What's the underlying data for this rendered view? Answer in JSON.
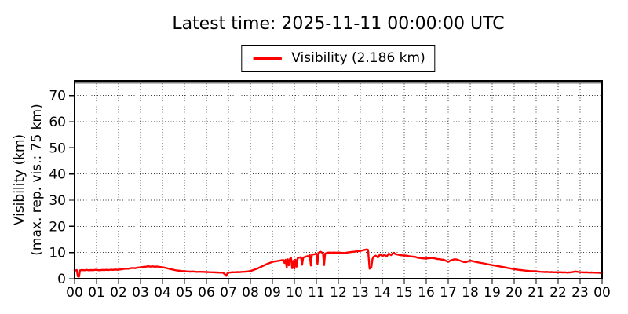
{
  "header": {
    "title": "Latest time: 2025-11-11 00:00:00 UTC"
  },
  "legend": {
    "label": "Visibility (2.186 km)",
    "line_color": "#ff0000"
  },
  "chart_data": {
    "type": "line",
    "title": "Latest time: 2025-11-11 00:00:00 UTC",
    "xlabel": "",
    "ylabel": "Visibility (km)",
    "ylabel_line2": "(max. rep. vis.: 75 km)",
    "xlim": [
      0,
      24
    ],
    "ylim": [
      0,
      75.6
    ],
    "xtick_values": [
      0,
      1,
      2,
      3,
      4,
      5,
      6,
      7,
      8,
      9,
      10,
      11,
      12,
      13,
      14,
      15,
      16,
      17,
      18,
      19,
      20,
      21,
      22,
      23,
      24
    ],
    "xtick_labels": [
      "00",
      "01",
      "02",
      "03",
      "04",
      "05",
      "06",
      "07",
      "08",
      "09",
      "10",
      "11",
      "12",
      "13",
      "14",
      "15",
      "16",
      "17",
      "18",
      "19",
      "20",
      "21",
      "22",
      "23",
      "00"
    ],
    "ytick_values": [
      0,
      10,
      20,
      30,
      40,
      50,
      60,
      70
    ],
    "ytick_labels": [
      "0",
      "10",
      "20",
      "30",
      "40",
      "50",
      "60",
      "70"
    ],
    "grid": true,
    "grid_style": "dotted",
    "legend_position": "top-center-outside",
    "max_reported_visibility_km": 75,
    "max_line_color": "#808080",
    "line_color": "#ff0000",
    "latest_value_km": 2.186,
    "latest_time_utc": "2025-11-11 00:00:00",
    "series": [
      {
        "name": "Visibility",
        "units": "km",
        "points": [
          [
            0,
            3.3
          ],
          [
            0.05,
            3.15
          ],
          [
            0.1,
            3.3
          ],
          [
            0.15,
            0.9
          ],
          [
            0.2,
            0.75
          ],
          [
            0.25,
            3.2
          ],
          [
            0.35,
            3.3
          ],
          [
            0.45,
            3.2
          ],
          [
            0.55,
            3.35
          ],
          [
            0.65,
            3.2
          ],
          [
            0.75,
            3.3
          ],
          [
            0.85,
            3.25
          ],
          [
            0.95,
            3.4
          ],
          [
            1.05,
            3.3
          ],
          [
            1.15,
            3.2
          ],
          [
            1.25,
            3.35
          ],
          [
            1.35,
            3.3
          ],
          [
            1.45,
            3.4
          ],
          [
            1.55,
            3.3
          ],
          [
            1.65,
            3.45
          ],
          [
            1.75,
            3.35
          ],
          [
            1.85,
            3.5
          ],
          [
            1.95,
            3.4
          ],
          [
            2.05,
            3.5
          ],
          [
            2.15,
            3.6
          ],
          [
            2.25,
            3.75
          ],
          [
            2.35,
            3.85
          ],
          [
            2.45,
            3.8
          ],
          [
            2.55,
            4.0
          ],
          [
            2.65,
            4.1
          ],
          [
            2.75,
            4.0
          ],
          [
            2.85,
            4.2
          ],
          [
            2.95,
            4.3
          ],
          [
            3.05,
            4.4
          ],
          [
            3.15,
            4.5
          ],
          [
            3.25,
            4.6
          ],
          [
            3.35,
            4.75
          ],
          [
            3.45,
            4.6
          ],
          [
            3.55,
            4.7
          ],
          [
            3.65,
            4.55
          ],
          [
            3.75,
            4.65
          ],
          [
            3.85,
            4.5
          ],
          [
            3.95,
            4.4
          ],
          [
            4.05,
            4.3
          ],
          [
            4.15,
            4.1
          ],
          [
            4.25,
            3.9
          ],
          [
            4.35,
            3.7
          ],
          [
            4.45,
            3.5
          ],
          [
            4.55,
            3.3
          ],
          [
            4.65,
            3.15
          ],
          [
            4.75,
            3.05
          ],
          [
            4.85,
            2.95
          ],
          [
            4.95,
            2.9
          ],
          [
            5.1,
            2.8
          ],
          [
            5.25,
            2.7
          ],
          [
            5.4,
            2.75
          ],
          [
            5.55,
            2.6
          ],
          [
            5.7,
            2.65
          ],
          [
            5.85,
            2.6
          ],
          [
            6.0,
            2.55
          ],
          [
            6.15,
            2.5
          ],
          [
            6.3,
            2.45
          ],
          [
            6.45,
            2.4
          ],
          [
            6.6,
            2.35
          ],
          [
            6.75,
            2.3
          ],
          [
            6.85,
            1.6
          ],
          [
            6.9,
            1.1
          ],
          [
            6.95,
            2.0
          ],
          [
            7.0,
            2.35
          ],
          [
            7.1,
            2.4
          ],
          [
            7.2,
            2.5
          ],
          [
            7.3,
            2.45
          ],
          [
            7.4,
            2.55
          ],
          [
            7.5,
            2.5
          ],
          [
            7.6,
            2.6
          ],
          [
            7.7,
            2.65
          ],
          [
            7.8,
            2.7
          ],
          [
            7.9,
            2.8
          ],
          [
            8.0,
            2.95
          ],
          [
            8.1,
            3.2
          ],
          [
            8.2,
            3.5
          ],
          [
            8.3,
            3.8
          ],
          [
            8.4,
            4.2
          ],
          [
            8.5,
            4.6
          ],
          [
            8.6,
            5.0
          ],
          [
            8.7,
            5.4
          ],
          [
            8.8,
            5.8
          ],
          [
            8.9,
            6.1
          ],
          [
            9.0,
            6.4
          ],
          [
            9.1,
            6.6
          ],
          [
            9.2,
            6.7
          ],
          [
            9.3,
            6.85
          ],
          [
            9.4,
            7.0
          ],
          [
            9.5,
            7.1
          ],
          [
            9.55,
            6.0
          ],
          [
            9.6,
            7.2
          ],
          [
            9.65,
            4.3
          ],
          [
            9.7,
            7.4
          ],
          [
            9.75,
            5.1
          ],
          [
            9.8,
            7.6
          ],
          [
            9.85,
            7.8
          ],
          [
            9.9,
            4.0
          ],
          [
            9.95,
            6.8
          ],
          [
            10.0,
            3.8
          ],
          [
            10.05,
            7.2
          ],
          [
            10.1,
            4.6
          ],
          [
            10.15,
            7.8
          ],
          [
            10.2,
            8.0
          ],
          [
            10.3,
            8.2
          ],
          [
            10.35,
            5.3
          ],
          [
            10.4,
            8.0
          ],
          [
            10.5,
            8.3
          ],
          [
            10.6,
            8.6
          ],
          [
            10.65,
            8.4
          ],
          [
            10.7,
            9.0
          ],
          [
            10.75,
            5.0
          ],
          [
            10.8,
            9.2
          ],
          [
            10.9,
            9.3
          ],
          [
            11.0,
            9.6
          ],
          [
            11.05,
            5.6
          ],
          [
            11.1,
            9.8
          ],
          [
            11.2,
            10.3
          ],
          [
            11.3,
            9.7
          ],
          [
            11.35,
            5.2
          ],
          [
            11.4,
            9.6
          ],
          [
            11.5,
            9.9
          ],
          [
            11.6,
            10.0
          ],
          [
            11.7,
            9.9
          ],
          [
            11.8,
            10.0
          ],
          [
            11.9,
            9.9
          ],
          [
            12.0,
            10.0
          ],
          [
            12.1,
            9.9
          ],
          [
            12.2,
            9.85
          ],
          [
            12.3,
            9.8
          ],
          [
            12.4,
            9.95
          ],
          [
            12.5,
            10.1
          ],
          [
            12.6,
            10.2
          ],
          [
            12.7,
            10.3
          ],
          [
            12.8,
            10.4
          ],
          [
            12.9,
            10.5
          ],
          [
            13.0,
            10.6
          ],
          [
            13.1,
            10.8
          ],
          [
            13.2,
            11.0
          ],
          [
            13.3,
            11.2
          ],
          [
            13.35,
            11.0
          ],
          [
            13.42,
            3.8
          ],
          [
            13.5,
            4.3
          ],
          [
            13.55,
            7.4
          ],
          [
            13.6,
            8.3
          ],
          [
            13.7,
            8.8
          ],
          [
            13.8,
            8.1
          ],
          [
            13.9,
            9.3
          ],
          [
            14.0,
            8.6
          ],
          [
            14.1,
            9.1
          ],
          [
            14.2,
            8.5
          ],
          [
            14.3,
            9.6
          ],
          [
            14.4,
            9.0
          ],
          [
            14.5,
            9.9
          ],
          [
            14.6,
            9.4
          ],
          [
            14.7,
            9.2
          ],
          [
            14.8,
            9.0
          ],
          [
            14.9,
            8.9
          ],
          [
            15.0,
            8.85
          ],
          [
            15.1,
            8.8
          ],
          [
            15.2,
            8.6
          ],
          [
            15.3,
            8.5
          ],
          [
            15.4,
            8.4
          ],
          [
            15.5,
            8.3
          ],
          [
            15.6,
            8.0
          ],
          [
            15.7,
            7.9
          ],
          [
            15.8,
            7.8
          ],
          [
            15.9,
            7.7
          ],
          [
            16.0,
            7.7
          ],
          [
            16.1,
            7.8
          ],
          [
            16.2,
            7.85
          ],
          [
            16.3,
            7.9
          ],
          [
            16.4,
            7.7
          ],
          [
            16.5,
            7.5
          ],
          [
            16.6,
            7.45
          ],
          [
            16.7,
            7.3
          ],
          [
            16.8,
            7.2
          ],
          [
            16.9,
            6.8
          ],
          [
            17.0,
            6.4
          ],
          [
            17.1,
            6.9
          ],
          [
            17.2,
            7.2
          ],
          [
            17.3,
            7.4
          ],
          [
            17.4,
            7.3
          ],
          [
            17.5,
            7.0
          ],
          [
            17.6,
            6.7
          ],
          [
            17.7,
            6.4
          ],
          [
            17.8,
            6.3
          ],
          [
            17.9,
            6.6
          ],
          [
            18.0,
            6.9
          ],
          [
            18.1,
            6.7
          ],
          [
            18.2,
            6.5
          ],
          [
            18.3,
            6.3
          ],
          [
            18.4,
            6.15
          ],
          [
            18.5,
            6.0
          ],
          [
            18.6,
            5.85
          ],
          [
            18.7,
            5.7
          ],
          [
            18.8,
            5.5
          ],
          [
            18.9,
            5.35
          ],
          [
            19.0,
            5.2
          ],
          [
            19.1,
            5.05
          ],
          [
            19.2,
            4.9
          ],
          [
            19.3,
            4.75
          ],
          [
            19.4,
            4.6
          ],
          [
            19.5,
            4.45
          ],
          [
            19.6,
            4.3
          ],
          [
            19.7,
            4.1
          ],
          [
            19.8,
            3.95
          ],
          [
            19.9,
            3.8
          ],
          [
            20.0,
            3.65
          ],
          [
            20.1,
            3.5
          ],
          [
            20.2,
            3.4
          ],
          [
            20.3,
            3.3
          ],
          [
            20.4,
            3.2
          ],
          [
            20.5,
            3.1
          ],
          [
            20.6,
            3.0
          ],
          [
            20.7,
            2.95
          ],
          [
            20.8,
            2.9
          ],
          [
            20.9,
            2.85
          ],
          [
            21.0,
            2.8
          ],
          [
            21.1,
            2.7
          ],
          [
            21.2,
            2.65
          ],
          [
            21.3,
            2.6
          ],
          [
            21.4,
            2.55
          ],
          [
            21.5,
            2.6
          ],
          [
            21.6,
            2.5
          ],
          [
            21.7,
            2.55
          ],
          [
            21.8,
            2.45
          ],
          [
            21.9,
            2.5
          ],
          [
            22.0,
            2.45
          ],
          [
            22.1,
            2.5
          ],
          [
            22.2,
            2.4
          ],
          [
            22.3,
            2.45
          ],
          [
            22.4,
            2.35
          ],
          [
            22.5,
            2.4
          ],
          [
            22.6,
            2.45
          ],
          [
            22.7,
            2.6
          ],
          [
            22.8,
            2.75
          ],
          [
            22.9,
            2.6
          ],
          [
            23.0,
            2.5
          ],
          [
            23.1,
            2.45
          ],
          [
            23.2,
            2.4
          ],
          [
            23.3,
            2.45
          ],
          [
            23.4,
            2.35
          ],
          [
            23.5,
            2.4
          ],
          [
            23.6,
            2.35
          ],
          [
            23.7,
            2.3
          ],
          [
            23.8,
            2.3
          ],
          [
            23.9,
            2.25
          ],
          [
            24.0,
            2.19
          ]
        ]
      }
    ]
  }
}
